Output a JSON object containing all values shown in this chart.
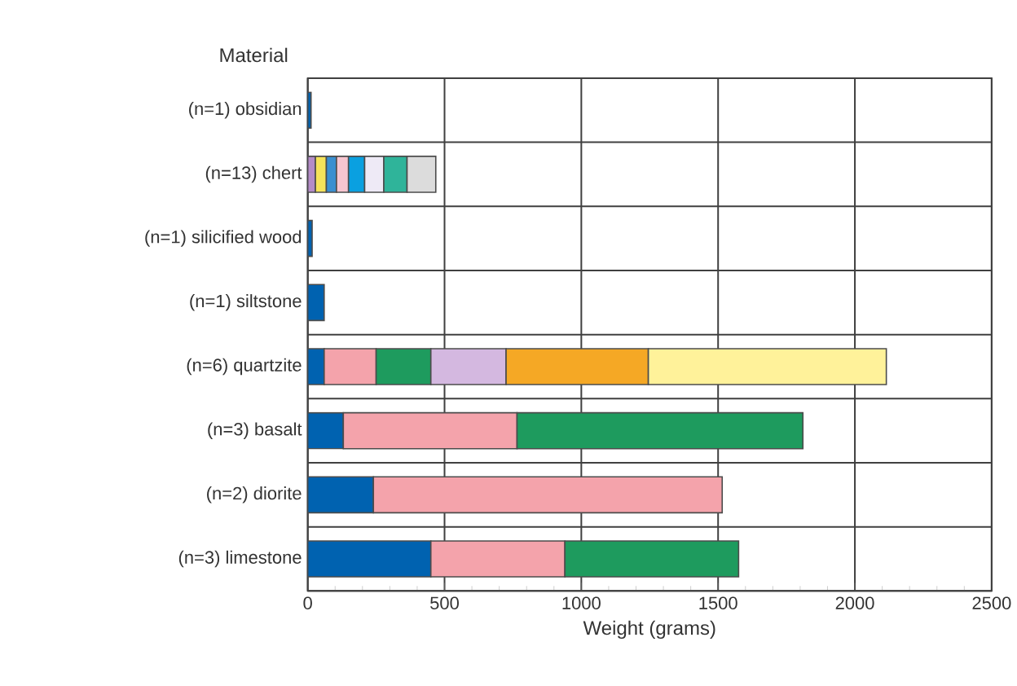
{
  "chart_data": {
    "type": "bar",
    "orientation": "horizontal",
    "stacked": true,
    "xlabel": "Weight (grams)",
    "ylabel": "Material",
    "categories": [
      "(n=1)  obsidian",
      "(n=13)  chert",
      "(n=1)  silicified wood",
      "(n=1)  siltstone",
      "(n=6)  quartzite",
      "(n=3)  basalt",
      "(n=2)  diorite",
      "(n=3)  limestone"
    ],
    "series": [
      {
        "values": [
          12,
          28,
          16,
          60,
          60,
          130,
          240,
          450
        ],
        "colors": [
          "#0062b0",
          "#b48cc8",
          "#0062b0",
          "#0062b0",
          "#0062b0",
          "#0062b0",
          "#0062b0",
          "#0062b0"
        ]
      },
      {
        "values": [
          null,
          40,
          null,
          null,
          190,
          635,
          1275,
          490
        ],
        "colors": [
          null,
          "#f5e35a",
          null,
          null,
          "#f4a3ab",
          "#f4a3ab",
          "#f4a3ab",
          "#f4a3ab"
        ]
      },
      {
        "values": [
          null,
          37,
          null,
          null,
          200,
          1045,
          null,
          635
        ],
        "colors": [
          null,
          "#3a8fd0",
          null,
          null,
          "#1e9b5e",
          "#1e9b5e",
          null,
          "#1e9b5e"
        ]
      },
      {
        "values": [
          null,
          44,
          null,
          null,
          275,
          null,
          null,
          null
        ],
        "colors": [
          null,
          "#f7c6d0",
          null,
          null,
          "#d4b8e0",
          null,
          null,
          null
        ]
      },
      {
        "values": [
          null,
          59,
          null,
          null,
          520,
          null,
          null,
          null
        ],
        "colors": [
          null,
          "#0aa0e0",
          null,
          null,
          "#f5a825",
          null,
          null,
          null
        ]
      },
      {
        "values": [
          null,
          70,
          null,
          null,
          870,
          null,
          null,
          null
        ],
        "colors": [
          null,
          "#eeeaf6",
          null,
          null,
          "#fff29a",
          null,
          null,
          null
        ]
      },
      {
        "values": [
          null,
          85,
          null,
          null,
          null,
          null,
          null,
          null
        ],
        "colors": [
          null,
          "#2fb49a",
          null,
          null,
          null,
          null,
          null,
          null
        ]
      },
      {
        "values": [
          null,
          105,
          null,
          null,
          null,
          null,
          null,
          null
        ],
        "colors": [
          null,
          "#dcdcdc",
          null,
          null,
          null,
          null,
          null,
          null
        ]
      }
    ],
    "xlim": [
      0,
      2500
    ],
    "xticks": [
      0,
      500,
      1000,
      1500,
      2000,
      2500
    ],
    "grid": true
  }
}
